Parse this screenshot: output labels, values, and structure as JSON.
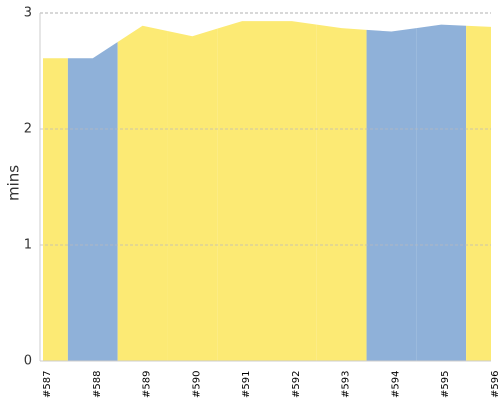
{
  "chart_data": {
    "type": "area",
    "y_label": "mins",
    "categories": [
      "#587",
      "#588",
      "#589",
      "#590",
      "#591",
      "#592",
      "#593",
      "#594",
      "#595",
      "#596"
    ],
    "values": [
      2.61,
      2.61,
      2.89,
      2.8,
      2.93,
      2.93,
      2.87,
      2.84,
      2.9,
      2.88
    ],
    "colors": [
      "#fcea74",
      "#8fb1d9",
      "#fcea74",
      "#fcea74",
      "#fcea74",
      "#fcea74",
      "#fcea74",
      "#8fb1d9",
      "#8fb1d9",
      "#fcea74"
    ],
    "ylim": [
      0,
      3
    ],
    "yticks": [
      0,
      1,
      2,
      3
    ],
    "grid": true
  }
}
